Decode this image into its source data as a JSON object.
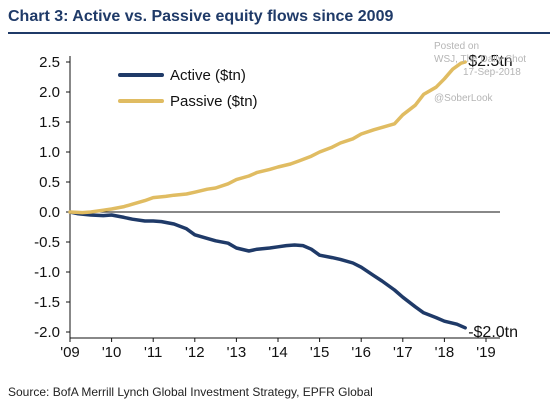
{
  "header": {
    "title": "Chart 3: Active vs. Passive equity flows since 2009"
  },
  "footer": {
    "source": "Source:  BofA Merrill Lynch Global Investment Strategy, EPFR Global"
  },
  "watermark": {
    "line1": "Posted on",
    "line2": "WSJ, The Daily Shot",
    "line3": "17-Sep-2018",
    "line4": "@SoberLook"
  },
  "colors": {
    "active": "#1f3a68",
    "passive": "#e0bc62",
    "title": "#1f3a68"
  },
  "chart_data": {
    "type": "line",
    "title": "Chart 3: Active vs. Passive equity flows since 2009",
    "xlabel": "",
    "ylabel": "",
    "xlim": [
      2009,
      2019
    ],
    "ylim": [
      -2.0,
      2.5
    ],
    "x_ticks": [
      2009,
      2010,
      2011,
      2012,
      2013,
      2014,
      2015,
      2016,
      2017,
      2018,
      2019
    ],
    "x_tick_labels": [
      "'09",
      "'10",
      "'11",
      "'12",
      "'13",
      "'14",
      "'15",
      "'16",
      "'17",
      "'18",
      "'19"
    ],
    "y_ticks": [
      -2.0,
      -1.5,
      -1.0,
      -0.5,
      0.0,
      0.5,
      1.0,
      1.5,
      2.0,
      2.5
    ],
    "y_tick_labels": [
      "-2.0",
      "-1.5",
      "-1.0",
      "-0.5",
      "0.0",
      "0.5",
      "1.0",
      "1.5",
      "2.0",
      "2.5"
    ],
    "grid": false,
    "legend": "top-left",
    "series": [
      {
        "name": "Active ($tn)",
        "color": "#1f3a68",
        "end_label": "-$2.0tn",
        "x": [
          2009.0,
          2009.2,
          2009.5,
          2009.8,
          2010.0,
          2010.3,
          2010.5,
          2010.8,
          2011.0,
          2011.2,
          2011.5,
          2011.8,
          2012.0,
          2012.3,
          2012.5,
          2012.8,
          2013.0,
          2013.3,
          2013.5,
          2013.8,
          2014.0,
          2014.2,
          2014.4,
          2014.6,
          2014.8,
          2015.0,
          2015.3,
          2015.5,
          2015.8,
          2016.0,
          2016.3,
          2016.5,
          2016.8,
          2017.0,
          2017.3,
          2017.5,
          2017.8,
          2018.0,
          2018.3,
          2018.5
        ],
        "y": [
          0.0,
          -0.03,
          -0.05,
          -0.06,
          -0.05,
          -0.09,
          -0.12,
          -0.15,
          -0.15,
          -0.16,
          -0.2,
          -0.28,
          -0.38,
          -0.44,
          -0.48,
          -0.52,
          -0.6,
          -0.65,
          -0.62,
          -0.6,
          -0.58,
          -0.56,
          -0.55,
          -0.56,
          -0.62,
          -0.72,
          -0.76,
          -0.79,
          -0.85,
          -0.92,
          -1.06,
          -1.15,
          -1.3,
          -1.42,
          -1.58,
          -1.68,
          -1.76,
          -1.82,
          -1.87,
          -1.93
        ]
      },
      {
        "name": "Passive ($tn)",
        "color": "#e0bc62",
        "end_label": "$2.5tn",
        "x": [
          2009.0,
          2009.3,
          2009.5,
          2009.8,
          2010.0,
          2010.3,
          2010.5,
          2010.8,
          2011.0,
          2011.3,
          2011.5,
          2011.8,
          2012.0,
          2012.3,
          2012.5,
          2012.8,
          2013.0,
          2013.3,
          2013.5,
          2013.8,
          2014.0,
          2014.3,
          2014.5,
          2014.8,
          2015.0,
          2015.3,
          2015.5,
          2015.8,
          2016.0,
          2016.3,
          2016.5,
          2016.8,
          2017.0,
          2017.3,
          2017.5,
          2017.8,
          2018.0,
          2018.2,
          2018.4,
          2018.5
        ],
        "y": [
          0.0,
          -0.01,
          0.0,
          0.03,
          0.05,
          0.09,
          0.13,
          0.19,
          0.24,
          0.26,
          0.28,
          0.3,
          0.33,
          0.38,
          0.4,
          0.47,
          0.54,
          0.6,
          0.66,
          0.71,
          0.75,
          0.8,
          0.85,
          0.93,
          1.0,
          1.08,
          1.15,
          1.22,
          1.3,
          1.37,
          1.41,
          1.47,
          1.62,
          1.78,
          1.96,
          2.08,
          2.22,
          2.38,
          2.48,
          2.5
        ]
      }
    ]
  }
}
